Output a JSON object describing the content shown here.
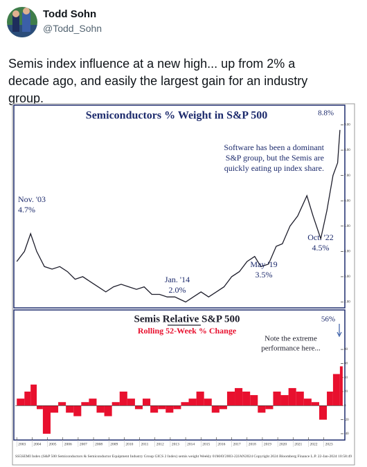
{
  "tweet": {
    "author": "Todd Sohn",
    "handle": "@Todd_Sohn",
    "text": "Semis index influence at a new high... up from 2% a decade ago, and easily the largest gain for an industry group."
  },
  "chart_data": [
    {
      "type": "line",
      "title": "Semiconductors % Weight in S&P 500",
      "color": "#1c1c2a",
      "x": [
        2003.0,
        2003.5,
        2003.9,
        2004.3,
        2004.8,
        2005.3,
        2005.8,
        2006.3,
        2006.8,
        2007.3,
        2007.8,
        2008.3,
        2008.8,
        2009.3,
        2009.8,
        2010.3,
        2010.8,
        2011.3,
        2011.8,
        2012.3,
        2012.8,
        2013.3,
        2014.0,
        2014.5,
        2015.0,
        2015.5,
        2016.0,
        2016.5,
        2017.0,
        2017.5,
        2018.0,
        2018.5,
        2018.9,
        2019.4,
        2019.9,
        2020.3,
        2020.8,
        2021.3,
        2021.9,
        2022.3,
        2022.8,
        2023.2,
        2023.6,
        2023.9,
        2024.05
      ],
      "values": [
        3.6,
        4.0,
        4.7,
        4.0,
        3.4,
        3.3,
        3.4,
        3.2,
        2.9,
        3.0,
        2.8,
        2.6,
        2.4,
        2.6,
        2.7,
        2.6,
        2.5,
        2.6,
        2.3,
        2.3,
        2.2,
        2.2,
        2.0,
        2.2,
        2.4,
        2.2,
        2.4,
        2.6,
        3.0,
        3.2,
        3.6,
        3.8,
        3.4,
        3.5,
        4.2,
        4.3,
        5.0,
        5.4,
        6.2,
        5.4,
        4.5,
        5.6,
        7.0,
        7.5,
        8.8
      ],
      "xlim": [
        2002.9,
        2024.1
      ],
      "ylim": [
        1.85,
        9.15
      ],
      "yticks": [
        {
          "value": 2,
          "label": "2.00"
        },
        {
          "value": 3,
          "label": "3.00"
        },
        {
          "value": 4,
          "label": "4.00"
        },
        {
          "value": 5,
          "label": "5.00"
        },
        {
          "value": 6,
          "label": "6.00"
        },
        {
          "value": 7,
          "label": "7.00"
        },
        {
          "value": 8,
          "label": "8.00"
        },
        {
          "value": 9,
          "label": "9.00"
        }
      ],
      "annotations": [
        {
          "lines": [
            "8.8%"
          ]
        },
        {
          "lines": [
            "Software has been a dominant",
            "S&P group, but the Semis are",
            "quickly eating up index share."
          ]
        },
        {
          "lines": [
            "Nov. '03",
            "4.7%"
          ]
        },
        {
          "lines": [
            "Jan. '14",
            "2.0%"
          ]
        },
        {
          "lines": [
            "May '19",
            "3.5%"
          ]
        },
        {
          "lines": [
            "Oct. '22",
            "4.5%"
          ]
        }
      ]
    },
    {
      "type": "bar",
      "title": "Semis Relative S&P 500",
      "subtitle": "Rolling 52-Week % Change",
      "color": "#e8102e",
      "x": [
        2003.0,
        2003.5,
        2003.9,
        2004.3,
        2004.7,
        2005.2,
        2005.7,
        2006.2,
        2006.7,
        2007.2,
        2007.7,
        2008.2,
        2008.7,
        2009.2,
        2009.7,
        2010.2,
        2010.7,
        2011.2,
        2011.7,
        2012.2,
        2012.7,
        2013.2,
        2013.7,
        2014.2,
        2014.7,
        2015.2,
        2015.7,
        2016.2,
        2016.7,
        2017.2,
        2017.7,
        2018.2,
        2018.7,
        2019.2,
        2019.7,
        2020.2,
        2020.7,
        2021.2,
        2021.7,
        2022.2,
        2022.7,
        2023.2,
        2023.6,
        2024.05
      ],
      "values": [
        10,
        20,
        30,
        -5,
        -40,
        -10,
        5,
        -10,
        -15,
        5,
        10,
        -10,
        -15,
        5,
        20,
        10,
        -5,
        10,
        -10,
        -5,
        -10,
        -5,
        5,
        10,
        20,
        10,
        -10,
        -5,
        20,
        25,
        20,
        15,
        -10,
        -5,
        20,
        15,
        25,
        20,
        10,
        5,
        -20,
        20,
        45,
        56
      ],
      "xlim": [
        2002.9,
        2024.1
      ],
      "ylim": [
        -45,
        85
      ],
      "yticks": [
        -40,
        -20,
        0,
        20,
        40,
        60,
        80
      ],
      "xticks": [
        2003,
        2004,
        2005,
        2006,
        2007,
        2008,
        2009,
        2010,
        2011,
        2012,
        2013,
        2014,
        2015,
        2016,
        2017,
        2018,
        2019,
        2020,
        2021,
        2022,
        2023
      ],
      "annotations": [
        {
          "lines": [
            "56%"
          ]
        },
        {
          "lines": [
            "Note the extreme",
            "performance here..."
          ]
        }
      ]
    }
  ],
  "source": "SS5SEMI Index (S&P 500 Semiconductors & Semiconductor Equipment Industry Group GICS 2 Index) semis weight Weekly 01MAY2003-22JAN2024 Copyright 2024 Bloomberg Finance L.P. 22-Jan-2024 10:58:49"
}
